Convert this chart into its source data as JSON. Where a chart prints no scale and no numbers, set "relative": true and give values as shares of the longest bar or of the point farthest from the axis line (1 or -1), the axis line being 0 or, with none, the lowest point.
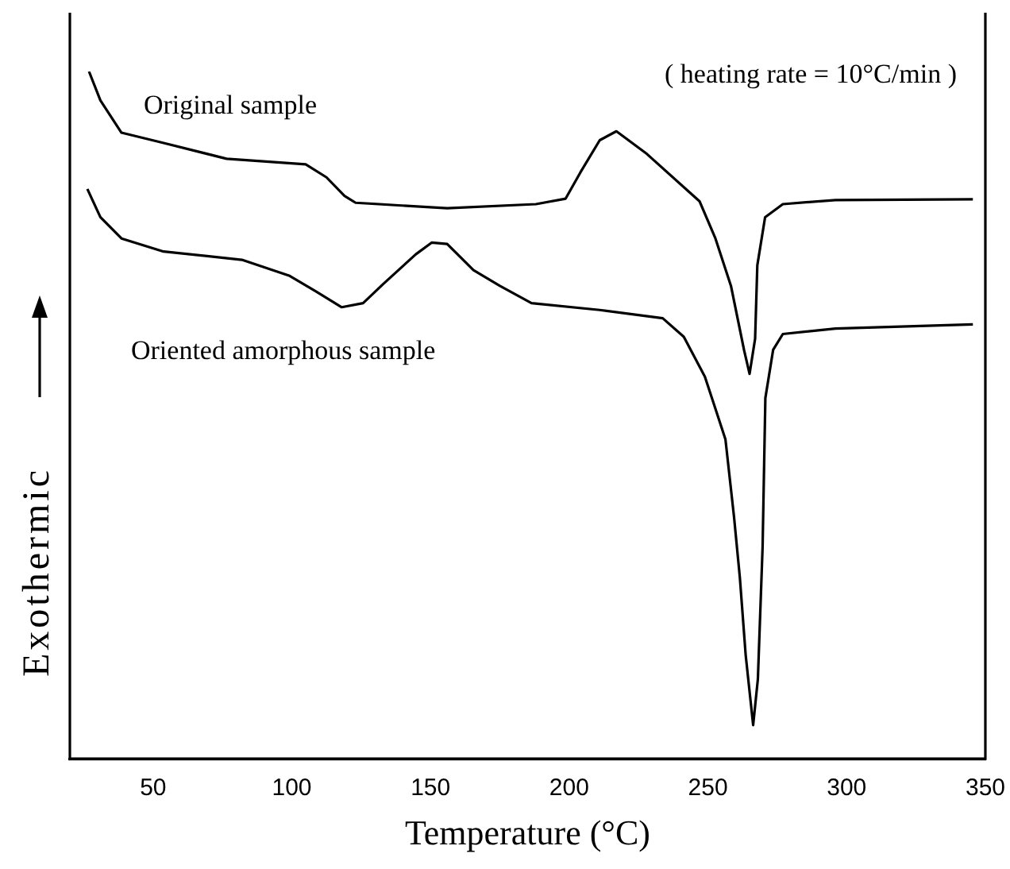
{
  "chart_data": {
    "type": "line",
    "relative": true,
    "xlabel": "Temperature (°C)",
    "ylabel": "Exothermic",
    "annotations": [
      "( heating rate = 10°C/min )"
    ],
    "xlim": [
      20,
      350
    ],
    "xticks": [
      50,
      100,
      150,
      200,
      250,
      300,
      350
    ],
    "grid": false,
    "legend": false,
    "marker": "none",
    "line_style": "solid",
    "series": [
      {
        "name": "Original sample",
        "color": "#000000",
        "x": [
          26.9,
          31,
          38.6,
          53.8,
          76.5,
          105,
          112.5,
          119,
          123,
          156,
          188,
          198.7,
          204,
          211,
          217,
          228,
          247,
          252.7,
          258.3,
          263,
          265,
          267,
          267.8,
          270.6,
          277,
          296,
          345.5
        ],
        "values": [
          1.0,
          0.958,
          0.911,
          0.896,
          0.873,
          0.865,
          0.846,
          0.819,
          0.809,
          0.801,
          0.807,
          0.815,
          0.853,
          0.9,
          0.913,
          0.88,
          0.811,
          0.757,
          0.688,
          0.595,
          0.56,
          0.611,
          0.718,
          0.788,
          0.807,
          0.813,
          0.814
        ]
      },
      {
        "name": "Oriented amorphous sample",
        "color": "#000000",
        "x": [
          26.3,
          31,
          38.6,
          53.8,
          82,
          99,
          108.7,
          118,
          125.7,
          133,
          144.7,
          150.4,
          156,
          165.5,
          175,
          186.4,
          211,
          233.7,
          241.3,
          248.9,
          256.3,
          259.4,
          261.5,
          263.6,
          266.3,
          268,
          269.7,
          270.7,
          273.5,
          277,
          296,
          345.5
        ],
        "values": [
          0.829,
          0.788,
          0.757,
          0.738,
          0.726,
          0.703,
          0.68,
          0.657,
          0.663,
          0.691,
          0.734,
          0.751,
          0.749,
          0.711,
          0.688,
          0.663,
          0.653,
          0.641,
          0.614,
          0.556,
          0.465,
          0.352,
          0.264,
          0.151,
          0.049,
          0.116,
          0.308,
          0.525,
          0.595,
          0.618,
          0.626,
          0.632
        ]
      }
    ]
  }
}
